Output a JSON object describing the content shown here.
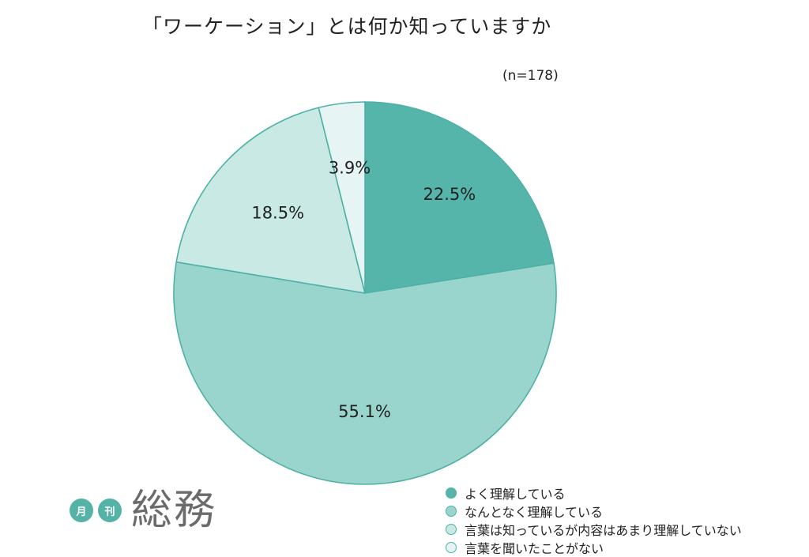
{
  "title": "「ワーケーション」とは何か知っていますか",
  "sample_size": "(n=178)",
  "logo": {
    "badge_1": "月",
    "badge_2": "刊",
    "wordmark": "総務"
  },
  "chart_data": {
    "type": "pie",
    "title": "「ワーケーション」とは何か知っていますか",
    "note": "(n=178)",
    "start": "12 o'clock, clockwise",
    "legend_position": "bottom-right",
    "labels": [
      "よく理解している",
      "なんとなく理解している",
      "言葉は知っているが内容はあまり理解していない",
      "言葉を聞いたことがない"
    ],
    "values": [
      22.5,
      55.1,
      18.5,
      3.9
    ],
    "value_labels": [
      "22.5%",
      "55.1%",
      "18.5%",
      "3.9%"
    ],
    "colors": [
      "#55b5aa",
      "#99d5cc",
      "#c9e9e5",
      "#e6f5f3"
    ]
  }
}
